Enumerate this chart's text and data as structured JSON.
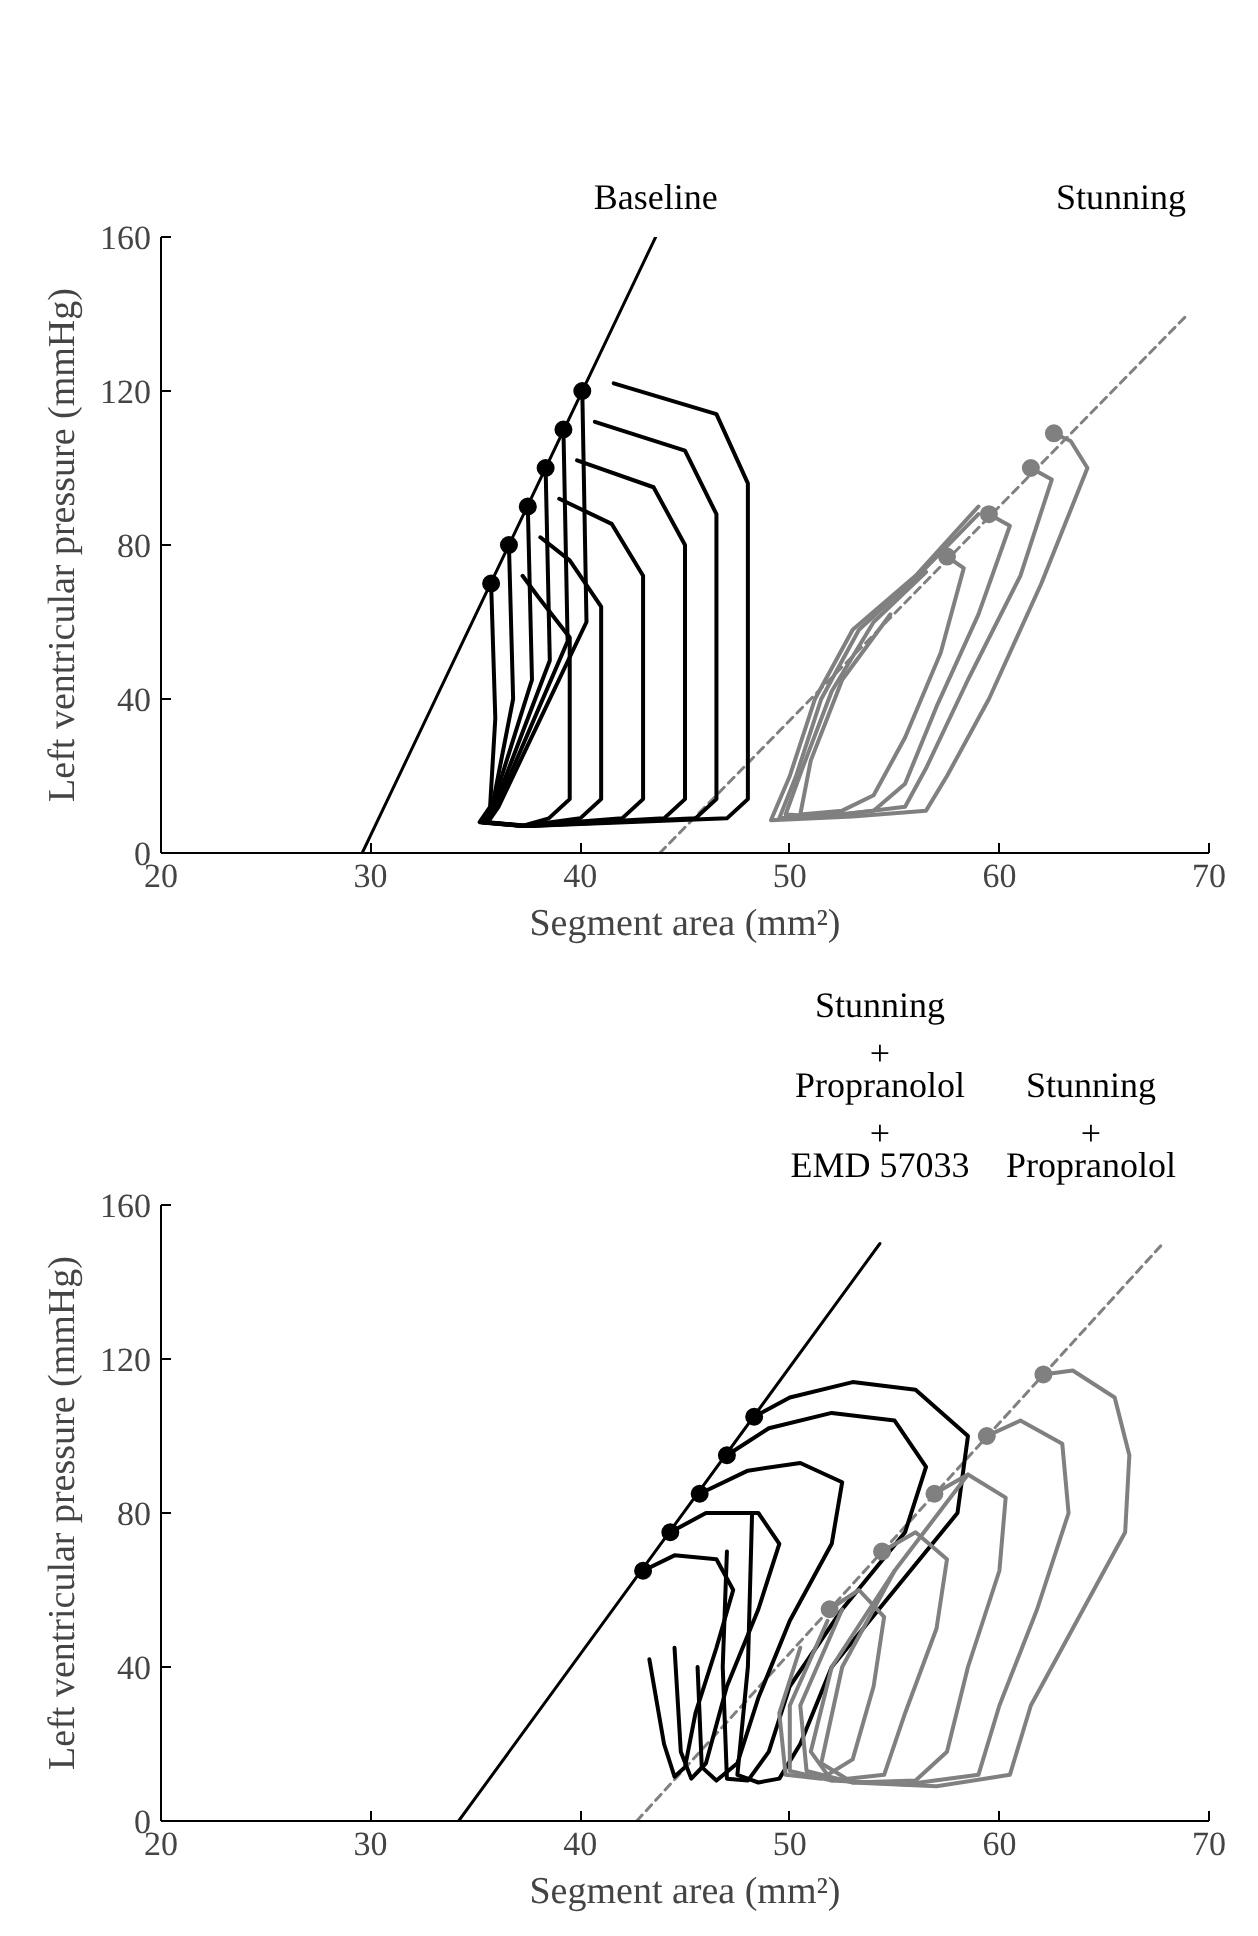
{
  "chart_data": [
    {
      "type": "line",
      "xlabel": "Segment area (mm²)",
      "ylabel": "Left ventricular pressure (mmHg)",
      "xlim": [
        20,
        70
      ],
      "ylim": [
        0,
        160
      ],
      "xticks": [
        20,
        30,
        40,
        50,
        60,
        70
      ],
      "yticks": [
        0,
        40,
        80,
        120,
        160
      ],
      "grid": false,
      "annotations": [
        "Baseline",
        "Stunning"
      ],
      "series": [
        {
          "color": "#000000",
          "line_style": "solid",
          "x": [
            29.6,
            43.6
          ],
          "values": [
            0,
            160
          ]
        },
        {
          "color": "#808080",
          "line_style": "dashed",
          "x": [
            43.8,
            69.0
          ],
          "values": [
            0,
            140
          ]
        },
        {
          "color": "#000000",
          "x": [
            40.1,
            40.3,
            36.1,
            35.6,
            37.6,
            47.0,
            48.0,
            48.0,
            46.5,
            41.6
          ],
          "values": [
            120,
            60,
            12,
            8,
            7,
            9,
            14,
            96,
            114,
            122
          ]
        },
        {
          "color": "#000000",
          "x": [
            39.2,
            39.4,
            36.0,
            35.5,
            37.5,
            45.5,
            46.5,
            46.5,
            45.0,
            40.7
          ],
          "values": [
            110,
            55,
            12,
            8,
            7,
            9,
            14,
            88,
            104.5,
            112
          ]
        },
        {
          "color": "#000000",
          "x": [
            38.35,
            38.55,
            35.9,
            35.4,
            37.4,
            44.0,
            45.0,
            45.0,
            43.5,
            39.85
          ],
          "values": [
            100,
            50,
            12,
            8,
            7,
            9,
            14,
            80,
            95,
            102
          ]
        },
        {
          "color": "#000000",
          "x": [
            37.5,
            37.7,
            35.8,
            35.3,
            37.3,
            42.0,
            43.0,
            43.0,
            41.5,
            39.0
          ],
          "values": [
            90,
            45,
            12,
            8,
            7,
            9,
            14,
            72,
            85.5,
            92
          ]
        },
        {
          "color": "#000000",
          "x": [
            36.6,
            36.8,
            35.8,
            35.3,
            37.3,
            40.0,
            41.0,
            41.0,
            39.5,
            38.1
          ],
          "values": [
            80,
            40,
            12,
            8,
            7,
            9,
            14,
            64,
            76,
            82
          ]
        },
        {
          "color": "#000000",
          "x": [
            35.75,
            35.95,
            35.7,
            35.2,
            37.2,
            38.5,
            39.5,
            39.5,
            38.0,
            37.25
          ],
          "values": [
            70,
            35,
            12,
            8,
            7,
            9,
            14,
            56,
            66.5,
            72
          ]
        },
        {
          "color": "#808080",
          "x": [
            62.6,
            63.4,
            64.2,
            62.0,
            59.5,
            57.5,
            56.5,
            53.0,
            49.1,
            50.0,
            51.2,
            53.0,
            56.0,
            59.0
          ],
          "values": [
            109,
            107,
            100,
            70,
            40,
            20,
            11,
            9.5,
            8.5,
            20,
            40,
            58,
            72,
            90
          ]
        },
        {
          "color": "#808080",
          "x": [
            61.5,
            62.5,
            61.0,
            58.5,
            56.5,
            55.5,
            52.5,
            49.5,
            50.3,
            51.5,
            53.3,
            56.3,
            59.0
          ],
          "values": [
            100,
            97,
            72,
            45,
            22,
            12,
            10,
            9,
            20,
            40,
            58,
            73,
            88
          ]
        },
        {
          "color": "#808080",
          "x": [
            59.5,
            60.5,
            59.0,
            57.0,
            55.5,
            54.0,
            51.5,
            49.8,
            50.6,
            52.0,
            54.0,
            56.5
          ],
          "values": [
            88,
            85,
            62,
            38,
            18,
            11,
            9.5,
            10,
            22,
            42,
            60,
            73
          ]
        },
        {
          "color": "#808080",
          "x": [
            57.5,
            58.3,
            57.2,
            55.5,
            54.0,
            52.5,
            50.5,
            51.0,
            52.5,
            54.8
          ],
          "values": [
            77,
            74,
            52,
            30,
            15,
            11,
            10,
            24,
            45,
            62
          ]
        },
        {
          "type": "scatter",
          "marker": "circle",
          "color": "#000000",
          "x": [
            40.1,
            39.2,
            38.35,
            37.5,
            36.6,
            35.75
          ],
          "values": [
            120,
            110,
            100,
            90,
            80,
            70
          ]
        },
        {
          "type": "scatter",
          "marker": "circle",
          "color": "#808080",
          "x": [
            62.6,
            61.5,
            59.5,
            57.5
          ],
          "values": [
            109,
            100,
            88,
            77
          ]
        }
      ]
    },
    {
      "type": "line",
      "xlabel": "Segment area (mm²)",
      "ylabel": "Left ventricular pressure (mmHg)",
      "xlim": [
        20,
        70
      ],
      "ylim": [
        0,
        160
      ],
      "xticks": [
        20,
        30,
        40,
        50,
        60,
        70
      ],
      "yticks": [
        0,
        40,
        80,
        120,
        160
      ],
      "grid": false,
      "annotations": [
        "Stunning\n+\nPropranolol\n+\nEMD 57033",
        "Stunning\n+\nPropranolol"
      ],
      "series": [
        {
          "color": "#000000",
          "line_style": "solid",
          "x": [
            34.2,
            54.3
          ],
          "values": [
            0,
            150
          ]
        },
        {
          "color": "#808080",
          "line_style": "dashed",
          "x": [
            42.7,
            67.8
          ],
          "values": [
            0,
            150
          ]
        },
        {
          "color": "#000000",
          "x": [
            48.3,
            50.0,
            53.0,
            56.0,
            58.5,
            58.0,
            55.0,
            52.0,
            50.5,
            49.5,
            48.5,
            47.5,
            48.0,
            48.2
          ],
          "values": [
            105,
            110,
            114,
            112,
            100,
            80,
            60,
            40,
            20,
            11,
            10,
            12,
            40,
            80
          ]
        },
        {
          "color": "#000000",
          "x": [
            47.0,
            49.0,
            52.0,
            55.0,
            56.5,
            55.5,
            52.5,
            50.0,
            49.0,
            48.0,
            47.0,
            46.8,
            47.0
          ],
          "values": [
            95,
            102,
            106,
            104,
            92,
            75,
            55,
            35,
            18,
            10.5,
            11,
            40,
            70
          ]
        },
        {
          "color": "#000000",
          "x": [
            45.7,
            48.0,
            50.5,
            52.5,
            52.0,
            50.0,
            48.5,
            47.5,
            46.5,
            45.8,
            45.6
          ],
          "values": [
            85,
            91,
            93,
            88,
            72,
            52,
            32,
            15,
            10.5,
            14,
            40
          ]
        },
        {
          "color": "#000000",
          "x": [
            44.3,
            46.0,
            48.5,
            49.5,
            48.5,
            47.0,
            46.0,
            45.3,
            44.8,
            44.5
          ],
          "values": [
            75,
            80,
            80,
            72,
            55,
            35,
            15,
            11,
            18,
            45
          ]
        },
        {
          "color": "#000000",
          "x": [
            43.0,
            44.5,
            46.5,
            47.3,
            46.5,
            45.5,
            45.0,
            44.5,
            44.0,
            43.3
          ],
          "values": [
            65,
            69,
            68,
            60,
            45,
            28,
            14,
            11.5,
            20,
            42
          ]
        },
        {
          "color": "#808080",
          "x": [
            62.1,
            63.5,
            65.5,
            66.2,
            66.0,
            64.0,
            61.5,
            60.5,
            57.0,
            53.0,
            51.5,
            52.5,
            55.0,
            58.5
          ],
          "values": [
            116,
            117,
            110,
            95,
            75,
            55,
            30,
            12,
            9,
            10,
            15,
            40,
            65,
            90
          ]
        },
        {
          "color": "#808080",
          "x": [
            59.4,
            61.0,
            63.0,
            63.3,
            61.8,
            60.0,
            59.0,
            55.5,
            52.0,
            51.0,
            52.0,
            55.0
          ],
          "values": [
            100,
            104,
            98,
            80,
            55,
            30,
            12,
            9.5,
            10.5,
            18,
            40,
            65
          ]
        },
        {
          "color": "#808080",
          "x": [
            56.9,
            58.5,
            60.3,
            60.0,
            58.5,
            57.5,
            56.0,
            53.0,
            50.8,
            50.5,
            52.5
          ],
          "values": [
            85,
            90,
            84,
            65,
            40,
            18,
            10.5,
            10,
            13,
            30,
            55
          ]
        },
        {
          "color": "#808080",
          "x": [
            54.4,
            56.0,
            57.5,
            57.0,
            55.5,
            54.5,
            52.0,
            50.0,
            50.0,
            51.8
          ],
          "values": [
            70,
            75,
            68,
            50,
            28,
            12,
            10.5,
            13,
            30,
            52
          ]
        },
        {
          "color": "#808080",
          "x": [
            51.9,
            53.3,
            54.5,
            54.0,
            53.0,
            51.5,
            49.8,
            49.5,
            50.5
          ],
          "values": [
            55,
            60,
            53,
            35,
            16,
            11,
            12,
            28,
            45
          ]
        },
        {
          "type": "scatter",
          "marker": "circle",
          "color": "#000000",
          "x": [
            48.3,
            47.0,
            45.7,
            44.3,
            43.0
          ],
          "values": [
            105,
            95,
            85,
            75,
            65
          ]
        },
        {
          "type": "scatter",
          "marker": "circle",
          "color": "#808080",
          "x": [
            62.1,
            59.4,
            56.9,
            54.4,
            51.9
          ],
          "values": [
            116,
            100,
            85,
            70,
            55
          ]
        }
      ]
    }
  ]
}
